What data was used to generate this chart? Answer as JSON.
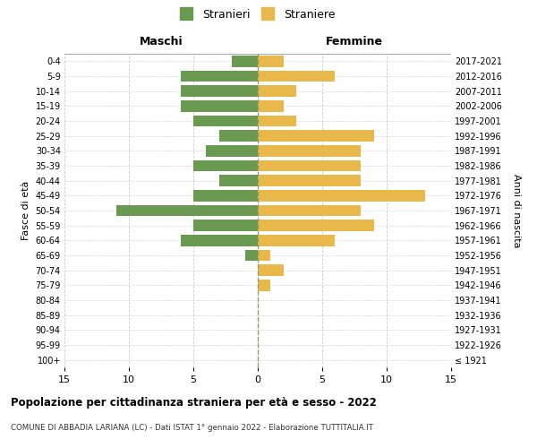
{
  "age_groups": [
    "100+",
    "95-99",
    "90-94",
    "85-89",
    "80-84",
    "75-79",
    "70-74",
    "65-69",
    "60-64",
    "55-59",
    "50-54",
    "45-49",
    "40-44",
    "35-39",
    "30-34",
    "25-29",
    "20-24",
    "15-19",
    "10-14",
    "5-9",
    "0-4"
  ],
  "birth_years": [
    "≤ 1921",
    "1922-1926",
    "1927-1931",
    "1932-1936",
    "1937-1941",
    "1942-1946",
    "1947-1951",
    "1952-1956",
    "1957-1961",
    "1962-1966",
    "1967-1971",
    "1972-1976",
    "1977-1981",
    "1982-1986",
    "1987-1991",
    "1992-1996",
    "1997-2001",
    "2002-2006",
    "2007-2011",
    "2012-2016",
    "2017-2021"
  ],
  "males": [
    0,
    0,
    0,
    0,
    0,
    0,
    0,
    1,
    6,
    5,
    11,
    5,
    3,
    5,
    4,
    3,
    5,
    6,
    6,
    6,
    2
  ],
  "females": [
    0,
    0,
    0,
    0,
    0,
    1,
    2,
    1,
    6,
    9,
    8,
    13,
    8,
    8,
    8,
    9,
    3,
    2,
    3,
    6,
    2
  ],
  "male_color": "#6a9a52",
  "female_color": "#e8b84b",
  "title": "Popolazione per cittadinanza straniera per età e sesso - 2022",
  "subtitle": "COMUNE DI ABBADIA LARIANA (LC) - Dati ISTAT 1° gennaio 2022 - Elaborazione TUTTITALIA.IT",
  "xlabel_left": "Maschi",
  "xlabel_right": "Femmine",
  "ylabel_left": "Fasce di età",
  "ylabel_right": "Anni di nascita",
  "legend_male": "Stranieri",
  "legend_female": "Straniere",
  "xlim": 15,
  "background_color": "#ffffff",
  "grid_color": "#cccccc",
  "center_line_color": "#999966"
}
